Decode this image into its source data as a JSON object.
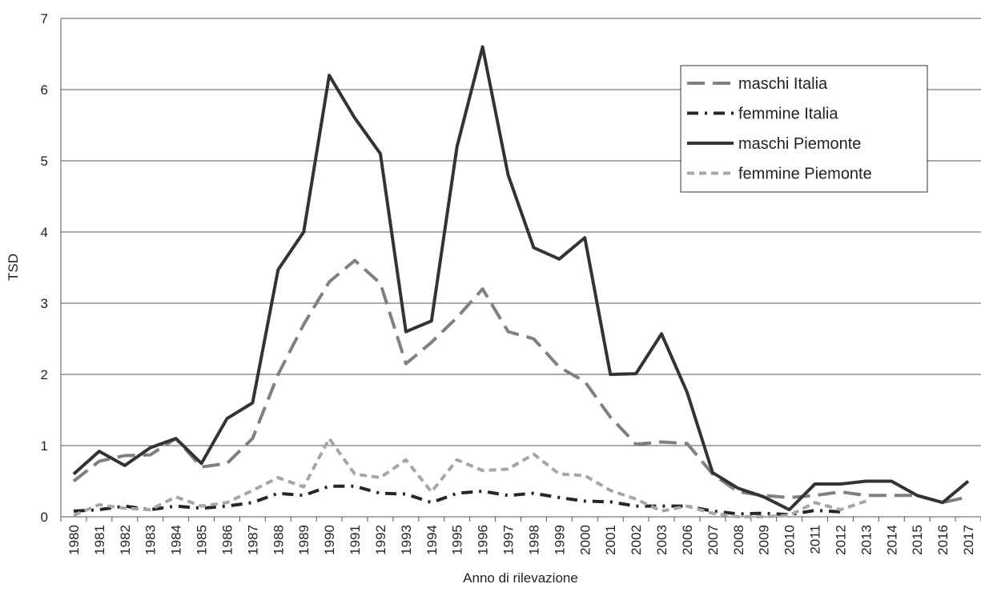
{
  "chart_data": {
    "type": "line",
    "x_label": "Anno di rilevazione",
    "y_label": "TSD",
    "categories": [
      "1980",
      "1981",
      "1982",
      "1983",
      "1984",
      "1985",
      "1986",
      "1987",
      "1988",
      "1989",
      "1990",
      "1991",
      "1992",
      "1993",
      "1994",
      "1995",
      "1996",
      "1997",
      "1998",
      "1999",
      "2000",
      "2001",
      "2002",
      "2003",
      "2006",
      "2007",
      "2008",
      "2009",
      "2010",
      "2011",
      "2012",
      "2013",
      "2014",
      "2015",
      "2016",
      "2017"
    ],
    "ylim": [
      0,
      7
    ],
    "yticks": [
      0,
      1,
      2,
      3,
      4,
      5,
      6,
      7
    ],
    "grid": true,
    "legend": "upper right",
    "series": [
      {
        "name": "maschi Italia",
        "color": "#808080",
        "dash": "long",
        "values": [
          0.5,
          0.78,
          0.86,
          0.87,
          1.1,
          0.7,
          0.75,
          1.1,
          2.0,
          2.7,
          3.3,
          3.6,
          3.28,
          2.15,
          2.45,
          2.8,
          3.2,
          2.6,
          2.5,
          2.1,
          1.9,
          1.4,
          1.02,
          1.05,
          1.03,
          0.6,
          0.35,
          0.3,
          0.27,
          0.3,
          0.35,
          0.3,
          0.3,
          0.3,
          0.2,
          0.28
        ]
      },
      {
        "name": "femmine Italia",
        "color": "#262626",
        "dash": "dash-dot",
        "values": [
          0.08,
          0.1,
          0.15,
          0.1,
          0.15,
          0.12,
          0.15,
          0.2,
          0.33,
          0.3,
          0.43,
          0.43,
          0.33,
          0.32,
          0.2,
          0.33,
          0.36,
          0.3,
          0.33,
          0.27,
          0.22,
          0.21,
          0.15,
          0.15,
          0.15,
          0.08,
          0.04,
          0.05,
          0.03,
          0.09,
          0.07,
          null,
          null,
          null,
          null,
          null
        ]
      },
      {
        "name": "maschi Piemonte",
        "color": "#333333",
        "dash": "solid",
        "values": [
          0.6,
          0.92,
          0.72,
          0.97,
          1.1,
          0.75,
          1.38,
          1.6,
          3.47,
          4.0,
          6.2,
          5.6,
          5.1,
          2.6,
          2.75,
          5.2,
          6.6,
          4.8,
          3.78,
          3.62,
          3.92,
          2.0,
          2.01,
          2.57,
          1.75,
          0.62,
          0.4,
          0.28,
          0.1,
          0.46,
          0.46,
          0.5,
          0.5,
          0.3,
          0.2,
          0.5
        ]
      },
      {
        "name": "femmine Piemonte",
        "color": "#a6a6a6",
        "dash": "short",
        "values": [
          0.02,
          0.17,
          0.12,
          0.1,
          0.28,
          0.15,
          0.2,
          0.37,
          0.55,
          0.42,
          1.1,
          0.6,
          0.55,
          0.8,
          0.35,
          0.8,
          0.65,
          0.67,
          0.88,
          0.6,
          0.58,
          0.37,
          0.25,
          0.08,
          0.15,
          0.05,
          0.0,
          0.0,
          0.02,
          0.2,
          0.1,
          0.22,
          null,
          null,
          null,
          null
        ]
      }
    ]
  }
}
